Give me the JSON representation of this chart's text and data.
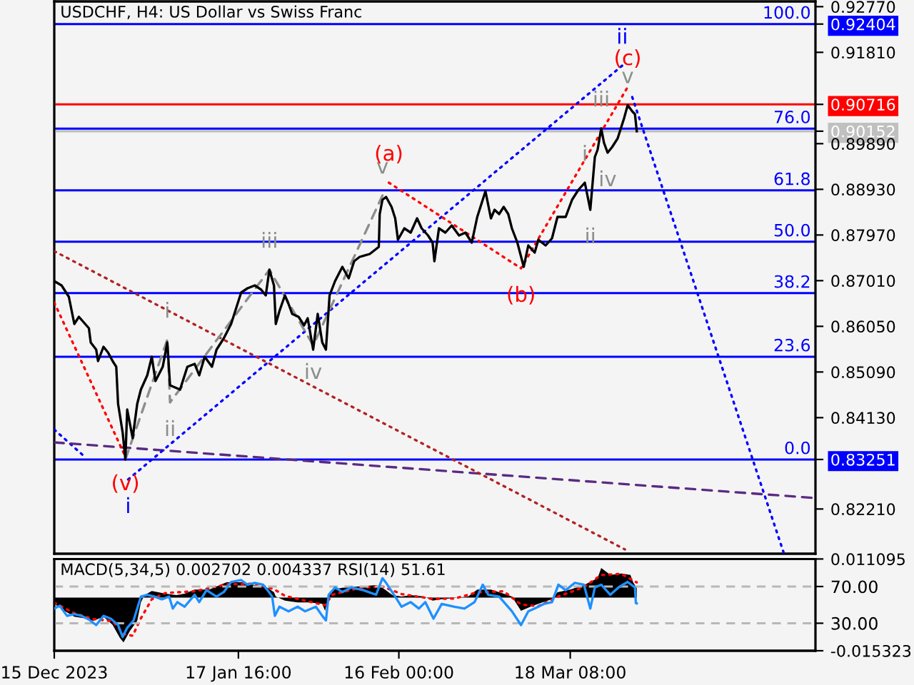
{
  "chart_data": [
    {
      "type": "line",
      "title": "USDCHF, H4: US Dollar vs Swiss Franc",
      "xlim": [
        "2023-12-15T00:00",
        "2024-05-02T04:00"
      ],
      "ylim": [
        0.8127,
        0.9288
      ],
      "y2lim": [
        -21.64,
        105.2
      ],
      "tick_labels": "y",
      "yticks": [
        {
          "value": 0.9277,
          "label": "0.92770"
        },
        0.92404,
        {
          "value": 0.9181,
          "label": "0.91810"
        },
        0.90716,
        0.90152,
        {
          "value": 0.8989,
          "label": "0.89890"
        },
        {
          "value": 0.8893,
          "label": "0.88930"
        },
        {
          "value": 0.8797,
          "label": "0.87970"
        },
        {
          "value": 0.8701,
          "label": "0.87010"
        },
        {
          "value": 0.8605,
          "label": "0.86050"
        },
        {
          "value": 0.8509,
          "label": "0.85090"
        },
        {
          "value": 0.8413,
          "label": "0.84130"
        },
        0.83251,
        {
          "value": 0.8221,
          "label": "0.82210"
        }
      ],
      "series": [
        {
          "color": "#000000",
          "line_style": "solid",
          "x": [
            "2023-12-15T00:00",
            "2023-12-16T08:00",
            "2023-12-17T16:00",
            "2023-12-18T16:00",
            "2023-12-19T12:00",
            "2023-12-21T08:00",
            "2023-12-21T16:00",
            "2023-12-22T16:00",
            "2023-12-23T00:00",
            "2023-12-24T00:00",
            "2023-12-24T20:00",
            "2023-12-25T16:00",
            "2023-12-26T08:00",
            "2023-12-26T16:00",
            "2023-12-27T12:00",
            "2023-12-28T00:00",
            "2023-12-28T08:00",
            "2023-12-29T08:00",
            "2023-12-30T04:00",
            "2023-12-30T20:00",
            "2024-01-01T00:00",
            "2024-01-01T20:00",
            "2024-01-02T12:00",
            "2024-01-03T20:00",
            "2024-01-04T16:00",
            "2024-01-05T04:00",
            "2024-01-07T00:00",
            "2024-01-08T08:00",
            "2024-01-09T16:00",
            "2024-01-10T12:00",
            "2024-01-11T12:00",
            "2024-01-12T20:00",
            "2024-01-13T16:00",
            "2024-01-15T00:00",
            "2024-01-16T08:00",
            "2024-01-17T04:00",
            "2024-01-18T04:00",
            "2024-01-19T08:00",
            "2024-01-20T16:00",
            "2024-01-21T20:00",
            "2024-01-22T16:00",
            "2024-01-23T08:00",
            "2024-01-24T04:00",
            "2024-01-24T12:00",
            "2024-01-25T04:00",
            "2024-01-26T04:00",
            "2024-01-26T20:00",
            "2024-01-27T12:00",
            "2024-01-28T16:00",
            "2024-01-29T16:00",
            "2024-01-30T08:00",
            "2024-01-31T08:00",
            "2024-02-01T04:00",
            "2024-02-02T00:00",
            "2024-02-02T16:00",
            "2024-02-03T08:00",
            "2024-02-04T08:00",
            "2024-02-05T16:00",
            "2024-02-06T20:00",
            "2024-02-07T20:00",
            "2024-02-08T20:00",
            "2024-02-10T16:00",
            "2024-02-12T08:00",
            "2024-02-12T12:00",
            "2024-02-13T00:00",
            "2024-02-13T16:00",
            "2024-02-14T16:00",
            "2024-02-15T08:00",
            "2024-02-15T20:00",
            "2024-02-17T00:00",
            "2024-02-18T04:00",
            "2024-02-19T08:00",
            "2024-02-20T04:00",
            "2024-02-21T08:00",
            "2024-02-22T04:00",
            "2024-02-22T12:00",
            "2024-02-23T08:00",
            "2024-02-24T12:00",
            "2024-02-25T16:00",
            "2024-02-27T00:00",
            "2024-02-28T04:00",
            "2024-02-29T08:00",
            "2024-03-01T08:00",
            "2024-03-02T20:00",
            "2024-03-03T20:00",
            "2024-03-04T12:00",
            "2024-03-05T08:00",
            "2024-03-06T04:00",
            "2024-03-07T00:00",
            "2024-03-07T16:00",
            "2024-03-08T16:00",
            "2024-03-09T20:00",
            "2024-03-10T16:00",
            "2024-03-11T20:00",
            "2024-03-12T12:00",
            "2024-03-13T20:00",
            "2024-03-15T00:00",
            "2024-03-16T00:00",
            "2024-03-17T12:00",
            "2024-03-18T16:00",
            "2024-03-19T20:00",
            "2024-03-21T00:00",
            "2024-03-22T00:00",
            "2024-03-22T20:00",
            "2024-03-23T08:00",
            "2024-03-24T00:00",
            "2024-03-24T12:00",
            "2024-03-25T04:00",
            "2024-03-26T00:00",
            "2024-03-27T00:00",
            "2024-03-28T04:00",
            "2024-03-28T20:00",
            "2024-03-29T16:00",
            "2024-03-30T04:00",
            "2024-03-30T12:00"
          ],
          "values": [
            0.87,
            0.8691,
            0.8667,
            0.861,
            0.8625,
            0.8601,
            0.8571,
            0.8556,
            0.8532,
            0.8562,
            0.855,
            0.8532,
            0.852,
            0.8442,
            0.8382,
            0.8325,
            0.843,
            0.837,
            0.8442,
            0.8472,
            0.8502,
            0.8541,
            0.849,
            0.852,
            0.8571,
            0.8481,
            0.8472,
            0.852,
            0.8526,
            0.8502,
            0.8541,
            0.852,
            0.8556,
            0.858,
            0.861,
            0.864,
            0.8676,
            0.8685,
            0.8691,
            0.8682,
            0.867,
            0.8724,
            0.8691,
            0.861,
            0.8637,
            0.867,
            0.8652,
            0.8631,
            0.8625,
            0.8607,
            0.8622,
            0.8556,
            0.8631,
            0.8571,
            0.8556,
            0.867,
            0.87,
            0.873,
            0.8706,
            0.8742,
            0.8751,
            0.8757,
            0.8772,
            0.8841,
            0.8871,
            0.8877,
            0.8856,
            0.8832,
            0.8787,
            0.8811,
            0.8802,
            0.8832,
            0.8811,
            0.8796,
            0.8781,
            0.8742,
            0.8811,
            0.8802,
            0.8817,
            0.8796,
            0.8802,
            0.8781,
            0.8835,
            0.8889,
            0.8832,
            0.885,
            0.8841,
            0.8856,
            0.8841,
            0.8811,
            0.8781,
            0.873,
            0.8775,
            0.876,
            0.8787,
            0.8775,
            0.879,
            0.8835,
            0.8835,
            0.8871,
            0.8892,
            0.8907,
            0.885,
            0.8961,
            0.8976,
            0.9021,
            0.8991,
            0.897,
            0.8982,
            0.9,
            0.9042,
            0.907,
            0.9057,
            0.9051,
            0.9015
          ]
        },
        {
          "color": "#8a8f8a",
          "line_style": "dashed",
          "x": [
            "2023-12-28T00:00",
            "2024-01-04T16:00",
            "2024-01-05T04:00",
            "2024-01-23T08:00",
            "2024-01-31T08:00",
            "2024-02-13T00:00"
          ],
          "values": [
            0.8325,
            0.8577,
            0.8445,
            0.8724,
            0.8565,
            0.888
          ],
          "value_labels": [
            null,
            "i",
            "ii",
            "iii",
            "iv",
            "v"
          ]
        },
        {
          "color": "#ff0000",
          "line_style": "dotted",
          "x": [
            "2023-12-15T00:00",
            "2023-12-28T00:00"
          ],
          "values": [
            0.8655,
            0.8331
          ],
          "value_labels": [
            null,
            "(v)"
          ]
        },
        {
          "color": "#ff0000",
          "line_style": "dotted",
          "x": [
            "2024-02-14T04:00",
            "2024-03-09T08:00",
            "2024-03-28T20:00"
          ],
          "values": [
            0.8907,
            0.8727,
            0.9108
          ],
          "value_labels": [
            "(a)",
            "(b)",
            "(c)"
          ]
        },
        {
          "color": "#0000ff",
          "line_style": "dotted",
          "x": [
            "2023-12-28T12:00",
            "2024-03-27T20:00"
          ],
          "values": [
            0.8283,
            0.9153
          ],
          "value_labels": [
            "i",
            "ii"
          ]
        },
        {
          "color": "#0000ff",
          "line_style": "dotted",
          "x": [
            "2024-03-29T16:00",
            "2024-04-26T08:00"
          ],
          "values": [
            0.9087,
            0.813
          ]
        },
        {
          "color": "#b22222",
          "line_style": "dotted",
          "x": [
            "2023-12-15T00:00",
            "2024-03-28T08:00"
          ],
          "values": [
            0.8763,
            0.8136
          ]
        },
        {
          "color": "#5a2a82",
          "line_style": "dashed",
          "x": [
            "2023-12-15T00:00",
            "2024-05-02T04:00"
          ],
          "values": [
            0.8361,
            0.8244
          ]
        },
        {
          "color": "#0000ff",
          "line_style": "dotted",
          "x": [
            "2023-12-15T00:00",
            "2023-12-20T20:00"
          ],
          "values": [
            0.8388,
            0.8328
          ]
        }
      ],
      "ref_lines": [
        {
          "axis": "y2",
          "value": 100,
          "label": "100.0",
          "color": "#0000ff"
        },
        {
          "axis": "y",
          "value": 0.90716,
          "color": "#ff0000"
        },
        {
          "axis": "y",
          "value": 0.90152,
          "color": "#c0c0c0"
        },
        {
          "axis": "y2",
          "value": 76,
          "label": "76.0",
          "color": "#0000ff"
        },
        {
          "axis": "y2",
          "value": 61.8,
          "label": "61.8",
          "color": "#0000ff"
        },
        {
          "axis": "y2",
          "value": 50,
          "label": "50.0",
          "color": "#0000ff"
        },
        {
          "axis": "y2",
          "value": 38.2,
          "label": "38.2",
          "color": "#0000ff"
        },
        {
          "axis": "y2",
          "value": 23.6,
          "label": "23.6",
          "color": "#0000ff"
        },
        {
          "axis": "y2",
          "value": 0,
          "label": "0.0",
          "color": "#0000ff"
        }
      ],
      "annotations": [
        {
          "text": "i",
          "x": "2024-03-21T00:00",
          "y": 0.8907
        },
        {
          "text": "ii",
          "x": "2024-03-22T00:00",
          "y": 0.885
        },
        {
          "text": "iii",
          "x": "2024-03-24T00:00",
          "y": 0.9021
        },
        {
          "text": "iv",
          "x": "2024-03-25T04:00",
          "y": 0.897
        },
        {
          "text": "v",
          "x": "2024-03-28T20:00",
          "y": 0.907
        }
      ]
    },
    {
      "type": "line",
      "title": "MACD(5,34,5) 0.002702 0.004337 RSI(14) 51.61",
      "xlim": [
        "2023-12-15T00:00",
        "2024-05-02T04:00"
      ],
      "ylim": [
        -0.015323,
        0.011095
      ],
      "yticks": [
        0.011095,
        -0.015323
      ],
      "y2lim": [
        0,
        100
      ],
      "y2ticks": [
        {
          "value": 70,
          "label": "70.00"
        },
        {
          "value": 30,
          "label": "30.00"
        }
      ],
      "xticks": [
        {
          "value": "2023-12-15T00:00",
          "label": "15 Dec 2023"
        },
        {
          "value": "2024-01-17T16:00",
          "label": "17 Jan 16:00"
        },
        {
          "value": "2024-02-16T00:00",
          "label": "16 Feb 00:00"
        },
        {
          "value": "2024-03-18T08:00",
          "label": "18 Mar 08:00"
        }
      ],
      "series": [
        {
          "type": "area",
          "color": "#000000",
          "x": [
            "2023-12-15T00:00",
            "2023-12-16T20:00",
            "2023-12-18T16:00",
            "2023-12-20T08:00",
            "2023-12-22T04:00",
            "2023-12-24T00:00",
            "2023-12-25T16:00",
            "2023-12-27T00:00",
            "2023-12-27T16:00",
            "2023-12-28T20:00",
            "2023-12-30T04:00",
            "2023-12-30T20:00",
            "2023-12-31T12:00",
            "2024-01-01T20:00",
            "2024-01-04T08:00",
            "2024-01-06T08:00",
            "2024-01-07T20:00",
            "2024-01-09T16:00",
            "2024-01-12T08:00",
            "2024-01-15T12:00",
            "2024-01-16T20:00",
            "2024-01-18T08:00",
            "2024-01-20T16:00",
            "2024-01-23T00:00",
            "2024-01-24T04:00",
            "2024-01-24T12:00",
            "2024-01-26T04:00",
            "2024-01-28T12:00",
            "2024-01-30T16:00",
            "2024-02-02T00:00",
            "2024-02-02T12:00",
            "2024-02-03T04:00",
            "2024-02-03T20:00",
            "2024-02-05T16:00",
            "2024-02-08T20:00",
            "2024-02-11T20:00",
            "2024-02-13T00:00",
            "2024-02-14T20:00",
            "2024-02-16T12:00",
            "2024-02-18T04:00",
            "2024-02-20T16:00",
            "2024-02-22T04:00",
            "2024-02-23T20:00",
            "2024-02-26T04:00",
            "2024-02-28T16:00",
            "2024-03-01T08:00",
            "2024-03-03T20:00",
            "2024-03-06T04:00",
            "2024-03-07T16:00",
            "2024-03-09T08:00",
            "2024-03-11T04:00",
            "2024-03-12T12:00",
            "2024-03-15T00:00",
            "2024-03-16T00:00",
            "2024-03-18T08:00",
            "2024-03-20T20:00",
            "2024-03-23T08:00",
            "2024-03-24T00:00",
            "2024-03-25T16:00",
            "2024-03-27T16:00",
            "2024-03-29T08:00",
            "2024-03-29T20:00",
            "2024-03-30T12:00"
          ],
          "values": [
            -0.0018,
            -0.0038,
            -0.0055,
            -0.0059,
            -0.0067,
            -0.0055,
            -0.0079,
            -0.0116,
            -0.0129,
            -0.0096,
            -0.0067,
            -0.0014,
            0.0007,
            0.0019,
            0.0011,
            0.0007,
            0.0011,
            0.0023,
            0.0023,
            0.0044,
            0.0044,
            0.0044,
            0.0036,
            0.0028,
            0.0015,
            0.0003,
            -0.0009,
            -0.0014,
            -0.0014,
            -0.0018,
            -0.0038,
            0.0003,
            0.0023,
            0.0028,
            0.0032,
            0.0036,
            0.0028,
            0.0007,
            0.0003,
            0.0007,
            0.0003,
            -0.0009,
            -0.0005,
            -0.0001,
            0.0003,
            0.0023,
            0.0023,
            0.0011,
            0.0003,
            -0.0038,
            -0.0026,
            -0.0018,
            -0.0005,
            0.0015,
            0.0023,
            0.0036,
            0.0056,
            0.0085,
            0.0065,
            0.0069,
            0.0065,
            0.0044,
            0.002702
          ]
        },
        {
          "type": "line",
          "color": "#ff0000",
          "line_style": "dotted",
          "x": [
            "2023-12-15T00:00",
            "2023-12-18T16:00",
            "2023-12-22T04:00",
            "2023-12-25T16:00",
            "2023-12-27T16:00",
            "2023-12-29T08:00",
            "2023-12-30T20:00",
            "2024-01-01T20:00",
            "2024-01-04T08:00",
            "2024-01-09T16:00",
            "2024-01-15T12:00",
            "2024-01-20T16:00",
            "2024-01-24T04:00",
            "2024-01-26T04:00",
            "2024-01-30T16:00",
            "2024-02-02T12:00",
            "2024-02-03T20:00",
            "2024-02-08T20:00",
            "2024-02-13T00:00",
            "2024-02-16T12:00",
            "2024-02-22T04:00",
            "2024-02-26T04:00",
            "2024-03-01T08:00",
            "2024-03-06T04:00",
            "2024-03-09T08:00",
            "2024-03-12T12:00",
            "2024-03-16T00:00",
            "2024-03-20T20:00",
            "2024-03-24T00:00",
            "2024-03-27T16:00",
            "2024-03-30T12:00"
          ],
          "values": [
            -0.0015,
            -0.0045,
            -0.0062,
            -0.0068,
            -0.0105,
            -0.011,
            -0.006,
            -0.0005,
            0.0013,
            0.0018,
            0.0038,
            0.004,
            0.0024,
            0.0005,
            -0.0012,
            -0.0022,
            0.0008,
            0.0028,
            0.0032,
            0.001,
            -0.0004,
            -0.0003,
            0.0015,
            0.0018,
            -0.002,
            -0.0025,
            0.0002,
            0.003,
            0.0065,
            0.0068,
            0.004337
          ]
        },
        {
          "type": "line",
          "color": "#1e90ff",
          "axis": "y2",
          "line_style": "solid",
          "x": [
            "2023-12-15T00:00",
            "2023-12-16T00:00",
            "2023-12-17T08:00",
            "2023-12-18T16:00",
            "2023-12-20T00:00",
            "2023-12-21T08:00",
            "2023-12-22T16:00",
            "2023-12-24T00:00",
            "2023-12-25T08:00",
            "2023-12-26T16:00",
            "2023-12-27T12:00",
            "2023-12-28T08:00",
            "2023-12-29T12:00",
            "2023-12-30T20:00",
            "2024-01-01T00:00",
            "2024-01-02T08:00",
            "2024-01-03T16:00",
            "2024-01-05T00:00",
            "2024-01-05T16:00",
            "2024-01-06T12:00",
            "2024-01-07T20:00",
            "2024-01-09T16:00",
            "2024-01-10T12:00",
            "2024-01-11T20:00",
            "2024-01-13T16:00",
            "2024-01-15T00:00",
            "2024-01-16T08:00",
            "2024-01-18T04:00",
            "2024-01-19T08:00",
            "2024-01-20T16:00",
            "2024-01-22T04:00",
            "2024-01-23T00:00",
            "2024-01-23T20:00",
            "2024-01-24T08:00",
            "2024-01-25T04:00",
            "2024-01-26T20:00",
            "2024-01-28T12:00",
            "2024-01-29T20:00",
            "2024-01-31T20:00",
            "2024-02-02T00:00",
            "2024-02-02T16:00",
            "2024-02-03T04:00",
            "2024-02-04T08:00",
            "2024-02-05T16:00",
            "2024-02-07T08:00",
            "2024-02-09T12:00",
            "2024-02-11T20:00",
            "2024-02-13T00:00",
            "2024-02-13T16:00",
            "2024-02-15T08:00",
            "2024-02-16T12:00",
            "2024-02-18T04:00",
            "2024-02-19T16:00",
            "2024-02-20T20:00",
            "2024-02-22T08:00",
            "2024-02-23T20:00",
            "2024-02-26T04:00",
            "2024-02-28T00:00",
            "2024-02-29T20:00",
            "2024-03-01T08:00",
            "2024-03-02T08:00",
            "2024-03-03T08:00",
            "2024-03-05T08:00",
            "2024-03-06T12:00",
            "2024-03-07T16:00",
            "2024-03-09T08:00",
            "2024-03-10T16:00",
            "2024-03-11T20:00",
            "2024-03-13T12:00",
            "2024-03-15T00:00",
            "2024-03-16T04:00",
            "2024-03-17T12:00",
            "2024-03-19T04:00",
            "2024-03-20T20:00",
            "2024-03-22T00:00",
            "2024-03-22T20:00",
            "2024-03-24T00:00",
            "2024-03-25T16:00",
            "2024-03-27T04:00",
            "2024-03-28T20:00",
            "2024-03-30T04:00",
            "2024-03-30T08:00",
            "2024-03-30T12:00"
          ],
          "values": [
            46,
            49,
            38,
            40,
            38,
            34,
            28,
            38,
            35,
            28,
            15,
            25,
            33,
            59,
            61,
            59,
            56,
            59,
            46,
            53,
            48,
            61,
            53,
            66,
            59,
            64,
            75,
            77,
            72,
            74,
            72,
            66,
            59,
            38,
            48,
            43,
            48,
            43,
            48,
            38,
            33,
            61,
            69,
            64,
            69,
            66,
            61,
            79,
            74,
            59,
            48,
            53,
            46,
            53,
            35,
            51,
            48,
            46,
            53,
            59,
            72,
            61,
            59,
            51,
            43,
            28,
            43,
            46,
            51,
            53,
            72,
            66,
            74,
            72,
            46,
            69,
            72,
            61,
            69,
            75,
            69,
            52,
            51.61
          ]
        }
      ],
      "ref_lines": [
        {
          "axis": "y2",
          "value": 70,
          "color": "#b8b8b8",
          "line_style": "dashed"
        },
        {
          "axis": "y2",
          "value": 30,
          "color": "#b8b8b8",
          "line_style": "dashed"
        }
      ]
    }
  ]
}
